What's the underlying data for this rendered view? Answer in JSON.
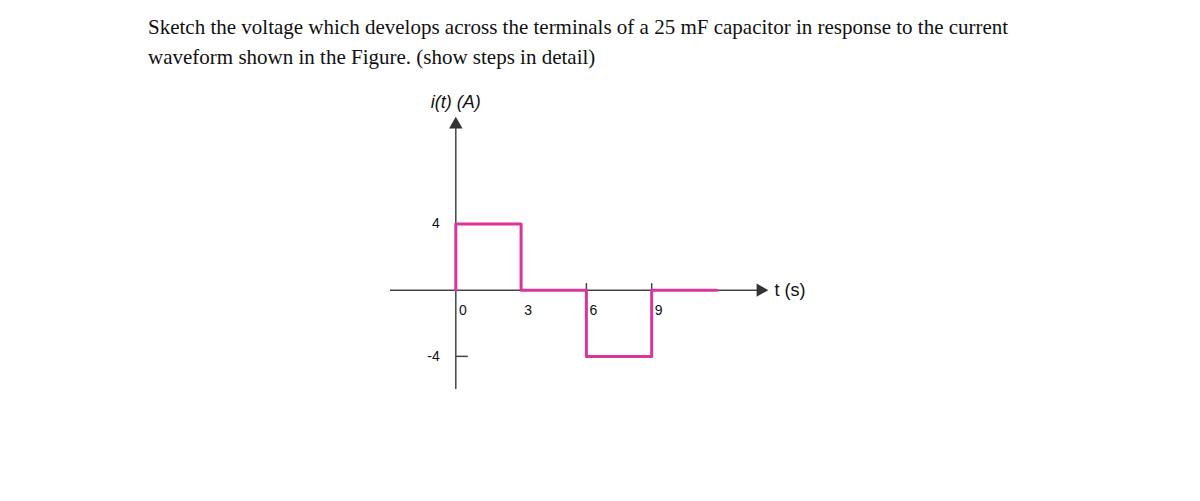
{
  "chart_data": {
    "type": "line",
    "title": "Sketch the voltage which develops across the terminals of a 25 mF capacitor in response to the current waveform shown in the Figure. (show steps in detail)",
    "xlabel": "t (s)",
    "ylabel": "i(t) (A)",
    "x": [
      0,
      0,
      3,
      3,
      6,
      6,
      9,
      9,
      12
    ],
    "values": [
      0,
      4,
      4,
      0,
      0,
      -4,
      -4,
      0,
      0
    ],
    "color": "#d9359b",
    "xlim": [
      -3,
      14
    ],
    "ylim": [
      -6,
      10
    ],
    "xticks": [
      0,
      3,
      6,
      9
    ],
    "yticks": [
      4,
      -4
    ],
    "grid": false
  }
}
